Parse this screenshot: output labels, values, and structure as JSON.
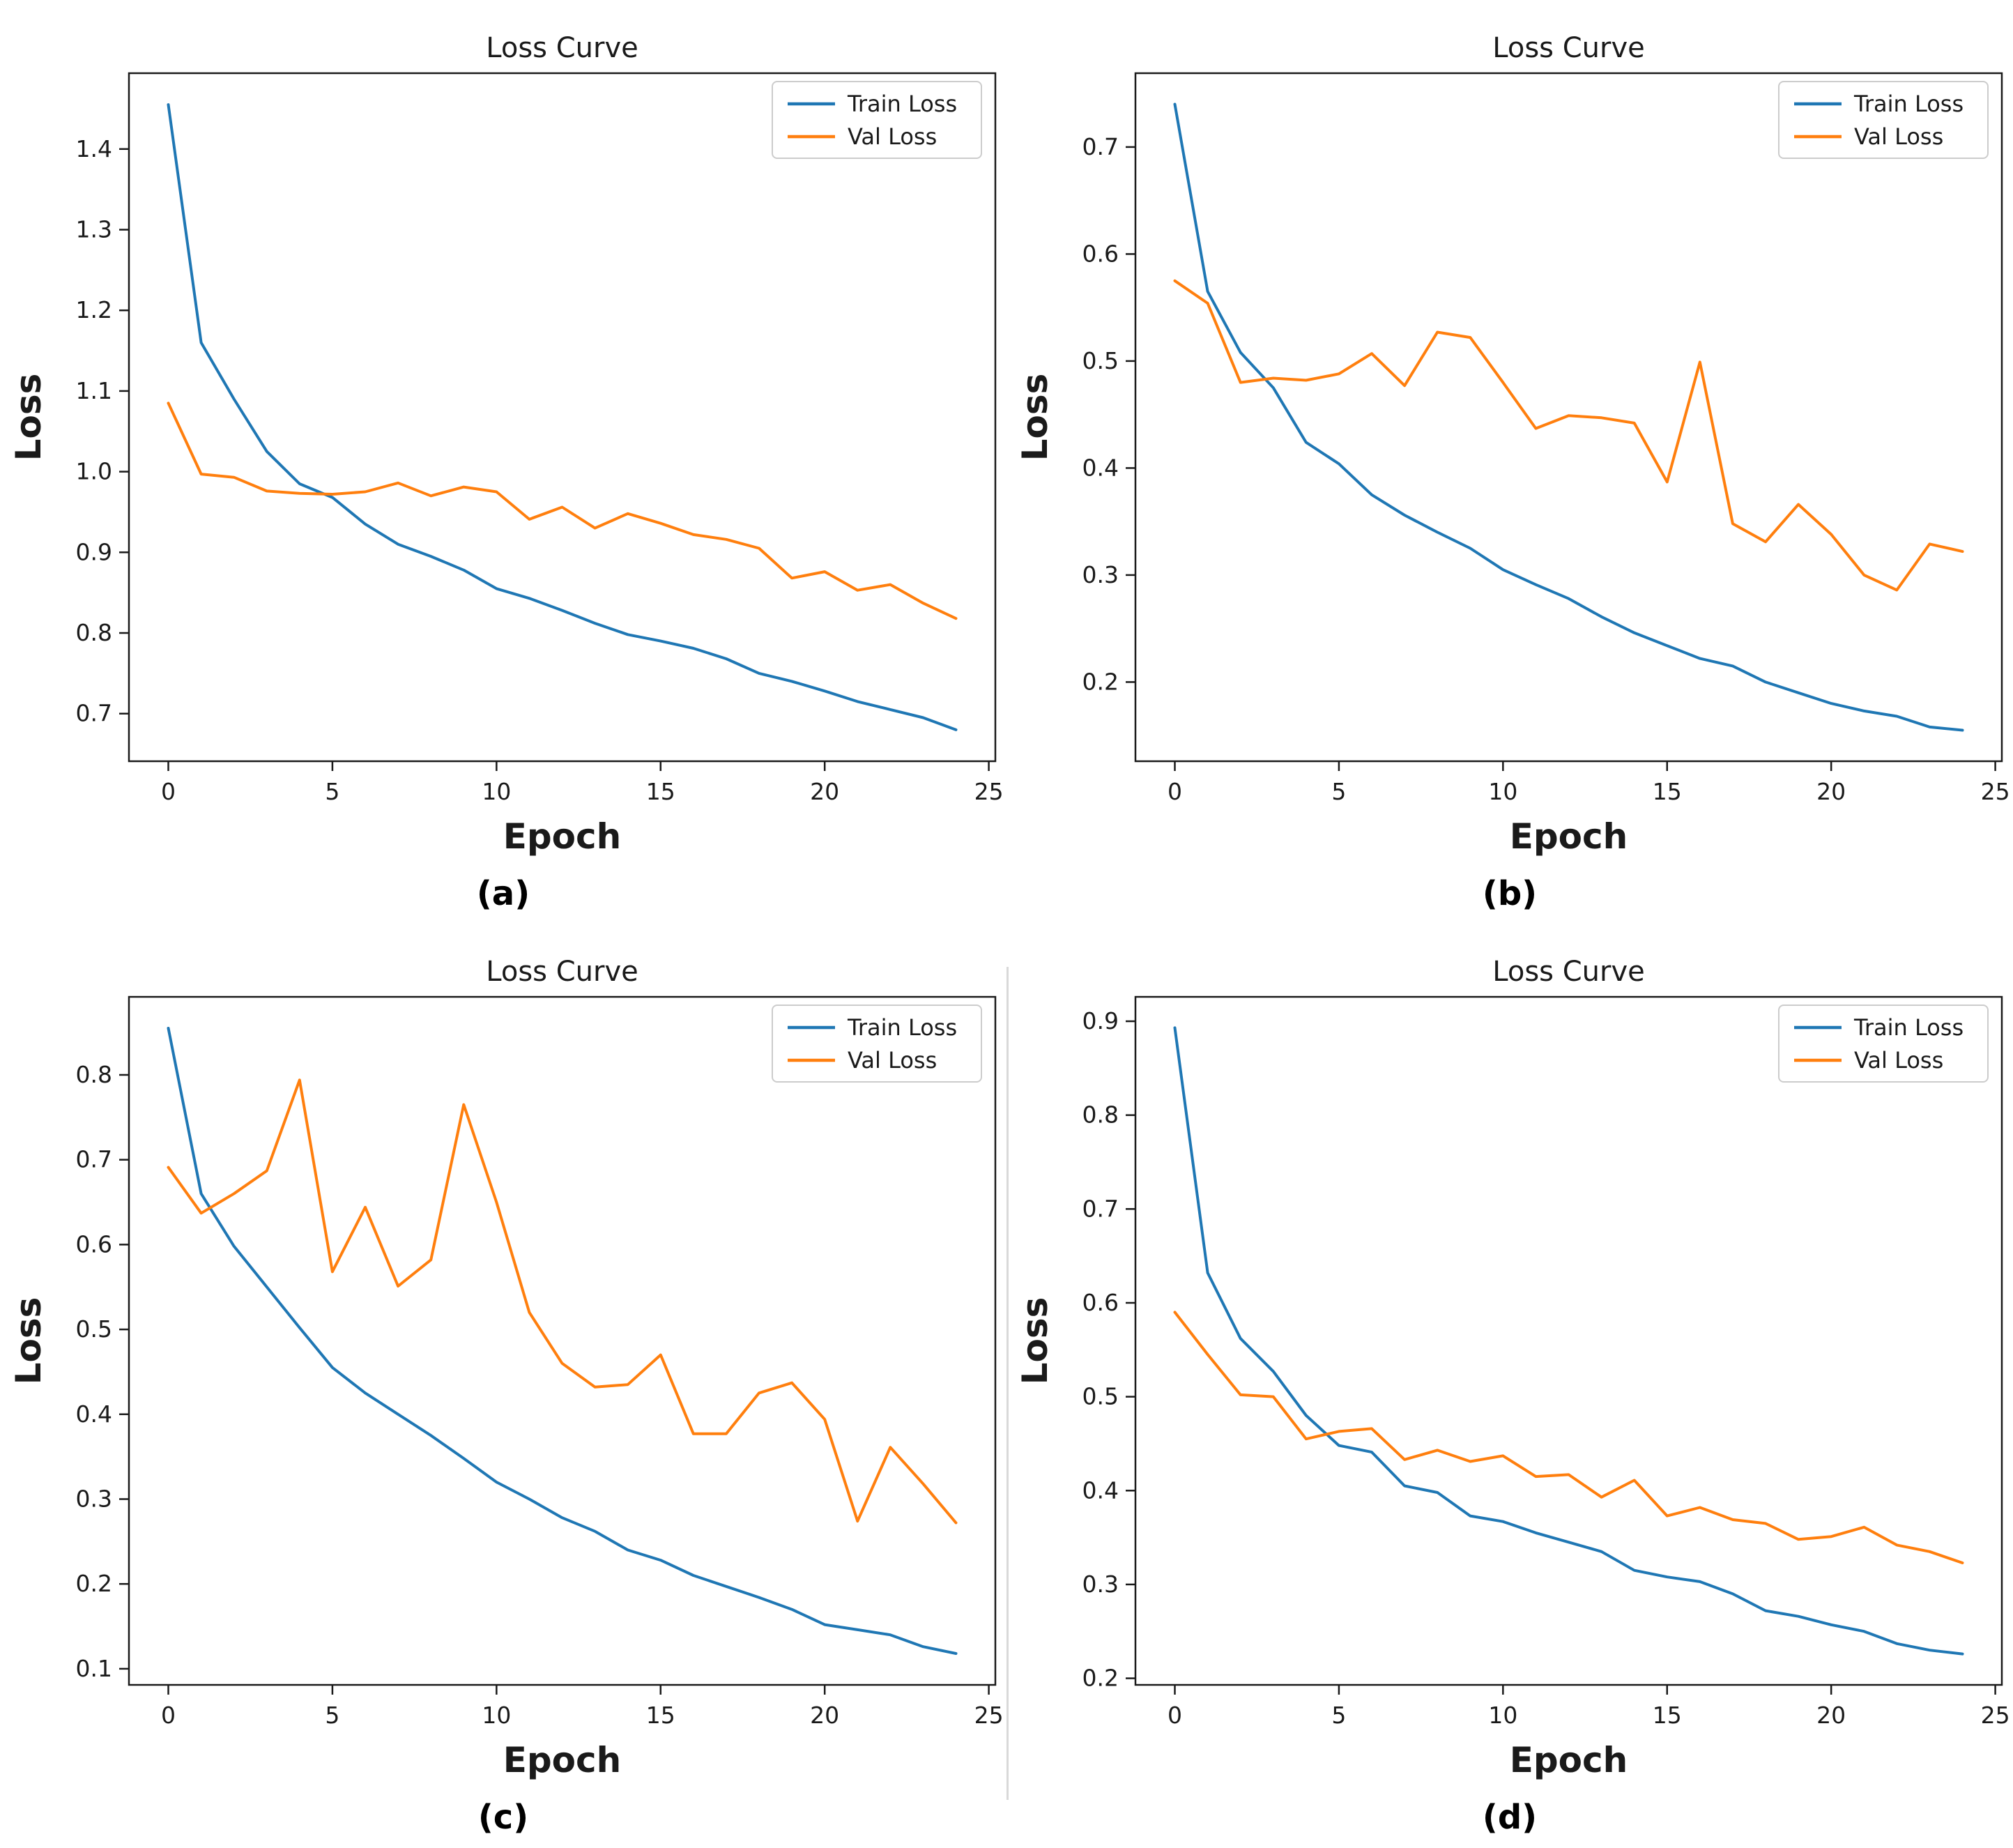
{
  "figure": {
    "description": "Four training/validation loss curve subplots",
    "panel_captions": [
      "(a)",
      "(b)",
      "(c)",
      "(d)"
    ]
  },
  "colors": {
    "train": "#1f77b4",
    "val": "#ff7f0e",
    "axis": "#1a1a1a",
    "legend_border": "#cccccc",
    "legend_bg": "#ffffff"
  },
  "chart_data": [
    {
      "type": "line",
      "caption": "(a)",
      "title": "Loss Curve",
      "xlabel": "Epoch",
      "ylabel": "Loss",
      "legend_position": "upper right",
      "grid": false,
      "x": [
        0,
        1,
        2,
        3,
        4,
        5,
        6,
        7,
        8,
        9,
        10,
        11,
        12,
        13,
        14,
        15,
        16,
        17,
        18,
        19,
        20,
        21,
        22,
        23,
        24
      ],
      "xlim": [
        -1.2,
        25.2
      ],
      "ylim": [
        0.641,
        1.494
      ],
      "xticks": [
        0,
        5,
        10,
        15,
        20,
        25
      ],
      "yticks": [
        0.7,
        0.8,
        0.9,
        1.0,
        1.1,
        1.2,
        1.3,
        1.4
      ],
      "series": [
        {
          "name": "Train Loss",
          "color_key": "train",
          "values": [
            1.455,
            1.16,
            1.09,
            1.025,
            0.985,
            0.968,
            0.935,
            0.91,
            0.895,
            0.878,
            0.855,
            0.843,
            0.828,
            0.812,
            0.798,
            0.79,
            0.781,
            0.768,
            0.75,
            0.74,
            0.728,
            0.715,
            0.705,
            0.695,
            0.68
          ]
        },
        {
          "name": "Val Loss",
          "color_key": "val",
          "values": [
            1.085,
            0.997,
            0.993,
            0.976,
            0.973,
            0.972,
            0.975,
            0.986,
            0.97,
            0.981,
            0.975,
            0.941,
            0.956,
            0.93,
            0.948,
            0.936,
            0.922,
            0.916,
            0.905,
            0.868,
            0.876,
            0.853,
            0.86,
            0.837,
            0.818
          ]
        }
      ]
    },
    {
      "type": "line",
      "caption": "(b)",
      "title": "Loss Curve",
      "xlabel": "Epoch",
      "ylabel": "Loss",
      "legend_position": "upper right",
      "grid": false,
      "x": [
        0,
        1,
        2,
        3,
        4,
        5,
        6,
        7,
        8,
        9,
        10,
        11,
        12,
        13,
        14,
        15,
        16,
        17,
        18,
        19,
        20,
        21,
        22,
        23,
        24
      ],
      "xlim": [
        -1.2,
        25.2
      ],
      "ylim": [
        0.126,
        0.769
      ],
      "xticks": [
        0,
        5,
        10,
        15,
        20,
        25
      ],
      "yticks": [
        0.2,
        0.3,
        0.4,
        0.5,
        0.6,
        0.7
      ],
      "series": [
        {
          "name": "Train Loss",
          "color_key": "train",
          "values": [
            0.74,
            0.565,
            0.508,
            0.475,
            0.424,
            0.404,
            0.375,
            0.356,
            0.34,
            0.325,
            0.305,
            0.291,
            0.278,
            0.261,
            0.246,
            0.234,
            0.222,
            0.215,
            0.2,
            0.19,
            0.18,
            0.173,
            0.168,
            0.158,
            0.155
          ]
        },
        {
          "name": "Val Loss",
          "color_key": "val",
          "values": [
            0.575,
            0.554,
            0.48,
            0.484,
            0.482,
            0.488,
            0.507,
            0.477,
            0.527,
            0.522,
            0.48,
            0.437,
            0.449,
            0.447,
            0.442,
            0.387,
            0.499,
            0.348,
            0.331,
            0.366,
            0.338,
            0.3,
            0.286,
            0.329,
            0.322
          ]
        }
      ]
    },
    {
      "type": "line",
      "caption": "(c)",
      "title": "Loss Curve",
      "xlabel": "Epoch",
      "ylabel": "Loss",
      "legend_position": "upper right",
      "grid": false,
      "x": [
        0,
        1,
        2,
        3,
        4,
        5,
        6,
        7,
        8,
        9,
        10,
        11,
        12,
        13,
        14,
        15,
        16,
        17,
        18,
        19,
        20,
        21,
        22,
        23,
        24
      ],
      "xlim": [
        -1.2,
        25.2
      ],
      "ylim": [
        0.081,
        0.892
      ],
      "xticks": [
        0,
        5,
        10,
        15,
        20,
        25
      ],
      "yticks": [
        0.1,
        0.2,
        0.3,
        0.4,
        0.5,
        0.6,
        0.7,
        0.8
      ],
      "series": [
        {
          "name": "Train Loss",
          "color_key": "train",
          "values": [
            0.855,
            0.66,
            0.598,
            0.55,
            0.502,
            0.455,
            0.425,
            0.4,
            0.375,
            0.348,
            0.32,
            0.3,
            0.278,
            0.262,
            0.24,
            0.228,
            0.21,
            0.197,
            0.184,
            0.17,
            0.152,
            0.146,
            0.14,
            0.126,
            0.118
          ]
        },
        {
          "name": "Val Loss",
          "color_key": "val",
          "values": [
            0.691,
            0.637,
            0.66,
            0.687,
            0.794,
            0.568,
            0.644,
            0.551,
            0.582,
            0.765,
            0.65,
            0.52,
            0.46,
            0.432,
            0.435,
            0.47,
            0.377,
            0.377,
            0.425,
            0.437,
            0.394,
            0.274,
            0.361,
            0.318,
            0.272
          ]
        }
      ]
    },
    {
      "type": "line",
      "caption": "(d)",
      "title": "Loss Curve",
      "xlabel": "Epoch",
      "ylabel": "Loss",
      "legend_position": "upper right",
      "grid": false,
      "x": [
        0,
        1,
        2,
        3,
        4,
        5,
        6,
        7,
        8,
        9,
        10,
        11,
        12,
        13,
        14,
        15,
        16,
        17,
        18,
        19,
        20,
        21,
        22,
        23,
        24
      ],
      "xlim": [
        -1.2,
        25.2
      ],
      "ylim": [
        0.193,
        0.926
      ],
      "xticks": [
        0,
        5,
        10,
        15,
        20,
        25
      ],
      "yticks": [
        0.2,
        0.3,
        0.4,
        0.5,
        0.6,
        0.7,
        0.8,
        0.9
      ],
      "series": [
        {
          "name": "Train Loss",
          "color_key": "train",
          "values": [
            0.893,
            0.632,
            0.562,
            0.527,
            0.48,
            0.448,
            0.441,
            0.405,
            0.398,
            0.373,
            0.367,
            0.355,
            0.345,
            0.335,
            0.315,
            0.308,
            0.303,
            0.29,
            0.272,
            0.266,
            0.257,
            0.25,
            0.237,
            0.23,
            0.226
          ]
        },
        {
          "name": "Val Loss",
          "color_key": "val",
          "values": [
            0.59,
            0.545,
            0.502,
            0.5,
            0.455,
            0.463,
            0.466,
            0.433,
            0.443,
            0.431,
            0.437,
            0.415,
            0.417,
            0.393,
            0.411,
            0.373,
            0.382,
            0.369,
            0.365,
            0.348,
            0.351,
            0.361,
            0.342,
            0.335,
            0.323
          ]
        }
      ]
    }
  ]
}
